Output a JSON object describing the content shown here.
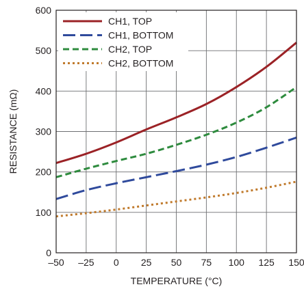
{
  "chart_data": {
    "type": "line",
    "title": "",
    "xlabel": "TEMPERATURE (°C)",
    "ylabel": "RESISTANCE (mΩ)",
    "xlim": [
      -50,
      150
    ],
    "ylim": [
      0,
      600
    ],
    "x_ticks": [
      -50,
      -25,
      0,
      25,
      50,
      75,
      100,
      125,
      150
    ],
    "x_tick_labels": [
      "–50",
      "–25",
      "0",
      "25",
      "50",
      "75",
      "100",
      "125",
      "150"
    ],
    "y_ticks": [
      0,
      100,
      200,
      300,
      400,
      500,
      600
    ],
    "y_tick_labels": [
      "0",
      "100",
      "200",
      "300",
      "400",
      "500",
      "600"
    ],
    "grid": true,
    "legend_position": "top-left",
    "x": [
      -50,
      -25,
      0,
      25,
      50,
      75,
      100,
      125,
      150
    ],
    "series": [
      {
        "name": "CH1, TOP",
        "color": "#9b2226",
        "dash": "solid",
        "values": [
          222,
          245,
          273,
          305,
          335,
          368,
          410,
          460,
          520
        ]
      },
      {
        "name": "CH1, BOTTOM",
        "color": "#2f4a9c",
        "dash": "long-dash",
        "values": [
          133,
          155,
          172,
          187,
          202,
          218,
          237,
          260,
          285
        ]
      },
      {
        "name": "CH2, TOP",
        "color": "#2e8b3e",
        "dash": "dash",
        "values": [
          187,
          208,
          227,
          245,
          267,
          292,
          322,
          360,
          410
        ]
      },
      {
        "name": "CH2, BOTTOM",
        "color": "#c07a2c",
        "dash": "dot",
        "values": [
          90,
          98,
          107,
          117,
          127,
          137,
          148,
          161,
          176
        ]
      }
    ]
  }
}
